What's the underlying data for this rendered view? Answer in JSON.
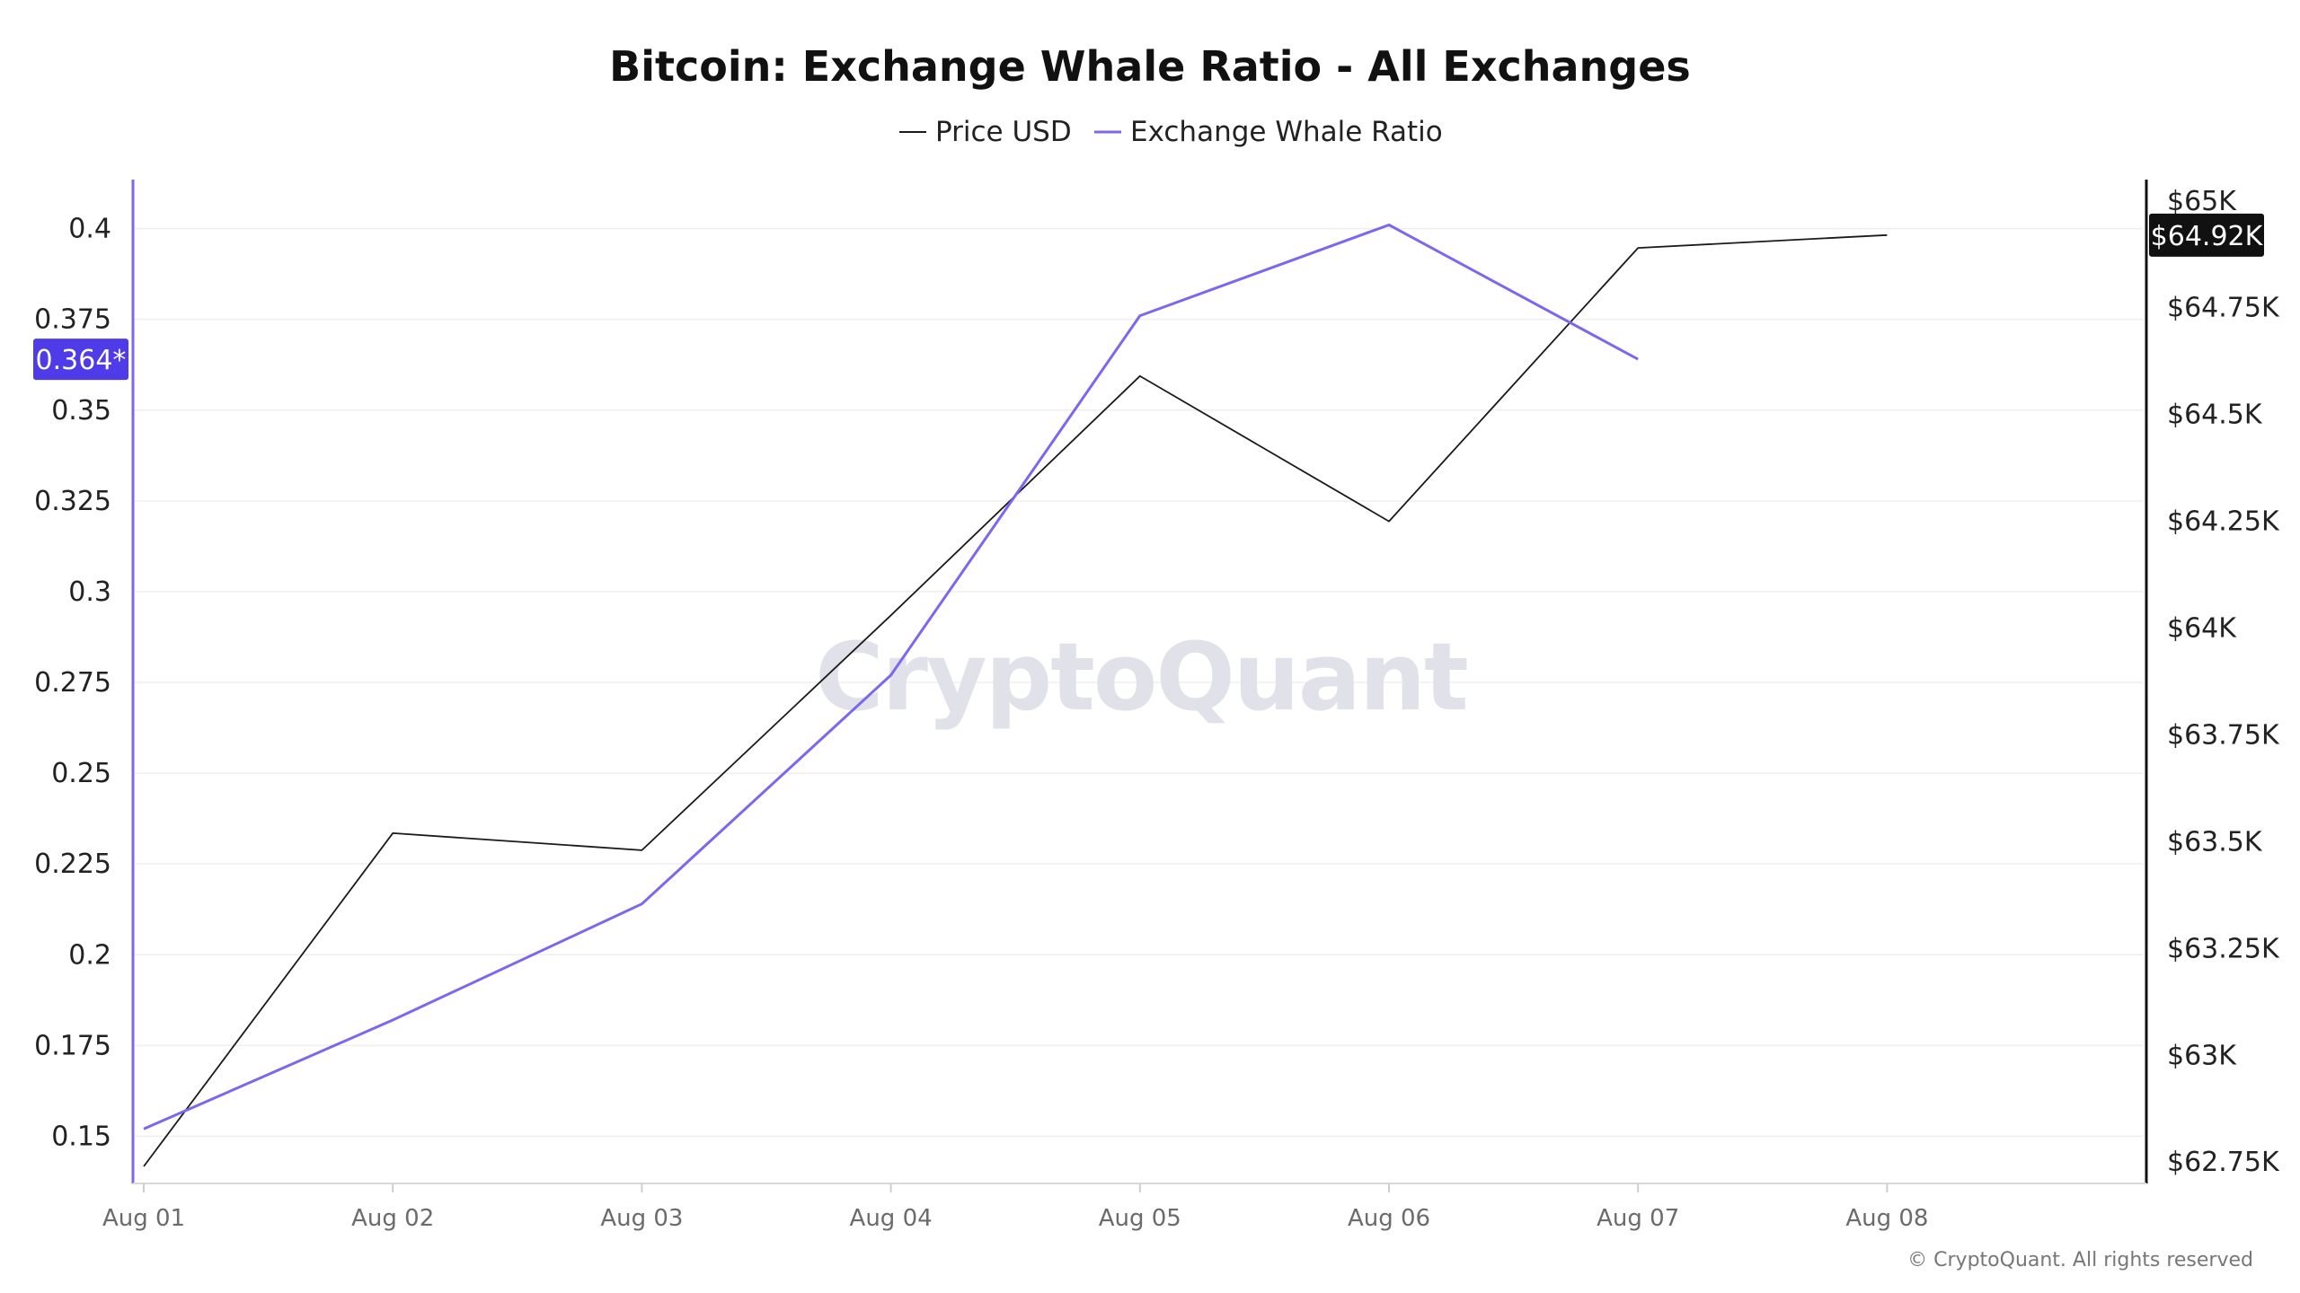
{
  "chart_data": {
    "type": "line",
    "title": "Bitcoin: Exchange Whale Ratio - All Exchanges",
    "categories": [
      "Aug 01",
      "Aug 02",
      "Aug 03",
      "Aug 04",
      "Aug 05",
      "Aug 06",
      "Aug 07",
      "Aug 08"
    ],
    "series": [
      {
        "name": "Price USD",
        "axis": "right",
        "color": "#1a1a1a",
        "values": [
          62740,
          63520,
          63480,
          64030,
          64590,
          64250,
          64890,
          64920
        ]
      },
      {
        "name": "Exchange Whale Ratio",
        "axis": "left",
        "color": "#7b68ee",
        "values": [
          0.152,
          0.182,
          0.214,
          0.277,
          0.376,
          0.401,
          0.364,
          null
        ]
      }
    ],
    "y_left": {
      "range": [
        0.137,
        0.4135
      ],
      "ticks": [
        "0.4",
        "0.375",
        "0.35",
        "0.325",
        "0.3",
        "0.275",
        "0.25",
        "0.225",
        "0.2",
        "0.175",
        "0.15"
      ],
      "tick_values": [
        0.4,
        0.375,
        0.35,
        0.325,
        0.3,
        0.275,
        0.25,
        0.225,
        0.2,
        0.175,
        0.15
      ],
      "current_badge": "0.364*",
      "badge_value": 0.364,
      "color": "#7b68ee"
    },
    "y_right": {
      "range": [
        62700,
        65050
      ],
      "ticks": [
        "$65K",
        "$64.75K",
        "$64.5K",
        "$64.25K",
        "$64K",
        "$63.75K",
        "$63.5K",
        "$63.25K",
        "$63K",
        "$62.75K"
      ],
      "tick_values": [
        65000,
        64750,
        64500,
        64250,
        64000,
        63750,
        63500,
        63250,
        63000,
        62750
      ],
      "current_badge": "$64.92K",
      "badge_value": 64920,
      "color": "#111111"
    },
    "grid": true,
    "legend_position": "top-center"
  },
  "watermark": "CryptoQuant",
  "copyright": "© CryptoQuant. All rights reserved",
  "colors": {
    "whale_ratio": "#7b68ee",
    "price": "#1a1a1a",
    "left_badge_bg": "#4f3ce8",
    "right_badge_bg": "#111111",
    "grid": "#efefef",
    "watermark": "#e1e1e9"
  }
}
